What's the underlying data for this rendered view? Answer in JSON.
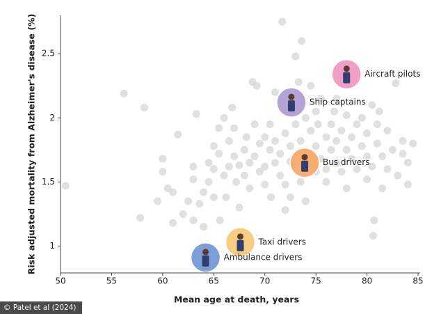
{
  "chart_data": {
    "type": "scatter",
    "x_label": "Mean age at death, years",
    "y_label": "Risk adjusted mortality from Alzheimer's disease (%)",
    "credit": "© Patel et al (2024)",
    "xlim": [
      50,
      85.2
    ],
    "ylim": [
      0.79,
      2.8
    ],
    "xticks": [
      50,
      55,
      60,
      65,
      70,
      75,
      80,
      85
    ],
    "yticks": [
      1,
      1.5,
      2,
      2.5
    ],
    "points": {
      "color": "#d6d6d6",
      "x": [
        50.5,
        56.2,
        58.2,
        57.8,
        59.5,
        60,
        60,
        60.5,
        61,
        61,
        61.5,
        62,
        62.5,
        63,
        63,
        63,
        63.3,
        63.6,
        64,
        64,
        64.5,
        64.5,
        65,
        65,
        65,
        65.5,
        65.5,
        65.6,
        66,
        66,
        66.2,
        66.5,
        66.5,
        66.8,
        67,
        67,
        67.2,
        67.5,
        67.5,
        68,
        68,
        68.2,
        68.5,
        68.5,
        68.8,
        69,
        69,
        69.2,
        69.5,
        69.5,
        70,
        70,
        70,
        70.5,
        70.5,
        70.6,
        71,
        71,
        71,
        71.5,
        71.5,
        71.7,
        72,
        72,
        72,
        72.5,
        72.5,
        72.5,
        73,
        73,
        73,
        73.3,
        73.5,
        73.5,
        73.6,
        74,
        74,
        74,
        74.5,
        74.5,
        75,
        75,
        75,
        75.2,
        75.5,
        75.5,
        76,
        76,
        76,
        76.5,
        76.5,
        76.8,
        77,
        77,
        77,
        77.5,
        77.5,
        78,
        78,
        78,
        78.5,
        78.5,
        79,
        79,
        79.5,
        79.5,
        80,
        80,
        80,
        80.5,
        80.5,
        80.7,
        81,
        81,
        81.2,
        81.5,
        81.5,
        82,
        82,
        82.5,
        82.8,
        83,
        83.5,
        83.5,
        84,
        84.5,
        84,
        80.6
      ],
      "y": [
        1.47,
        2.19,
        2.08,
        1.22,
        1.35,
        1.68,
        1.58,
        1.45,
        1.42,
        1.18,
        1.87,
        1.25,
        1.35,
        1.52,
        1.2,
        1.62,
        2.03,
        1.33,
        1.42,
        1.15,
        1.65,
        1.5,
        1.78,
        1.6,
        1.38,
        1.92,
        1.72,
        1.2,
        2.0,
        1.55,
        1.38,
        1.82,
        1.62,
        2.08,
        1.92,
        1.7,
        1.5,
        1.63,
        1.3,
        1.75,
        1.55,
        1.85,
        1.65,
        1.45,
        2.28,
        1.95,
        1.7,
        2.25,
        1.58,
        1.8,
        1.85,
        1.62,
        1.48,
        1.75,
        1.95,
        1.38,
        1.65,
        1.82,
        2.2,
        1.55,
        1.72,
        2.75,
        1.88,
        1.48,
        1.28,
        1.66,
        1.78,
        1.38,
        1.95,
        1.6,
        2.48,
        2.28,
        1.82,
        1.5,
        2.6,
        1.72,
        2.0,
        1.35,
        2.25,
        1.9,
        1.58,
        1.78,
        2.05,
        1.95,
        1.68,
        2.15,
        1.85,
        1.6,
        1.5,
        1.95,
        1.75,
        2.05,
        1.65,
        1.82,
        2.15,
        1.58,
        1.9,
        1.75,
        2.02,
        1.45,
        1.68,
        1.85,
        1.6,
        1.95,
        1.78,
        2.0,
        1.7,
        1.88,
        1.52,
        2.1,
        1.62,
        1.2,
        1.8,
        1.95,
        2.05,
        1.7,
        1.45,
        1.9,
        1.6,
        1.75,
        2.27,
        1.55,
        1.72,
        1.82,
        1.65,
        1.8,
        1.48,
        1.08
      ]
    },
    "highlights": {
      "labels": [
        "Aircraft pilots",
        "Ship captains",
        "Bus drivers",
        "Taxi drivers",
        "Ambulance drivers"
      ],
      "x": [
        78.0,
        72.6,
        73.9,
        67.6,
        64.2
      ],
      "y": [
        2.34,
        2.12,
        1.65,
        1.03,
        0.91
      ],
      "colors": [
        "#ef9fc6",
        "#b4a3d6",
        "#f5ad72",
        "#f7cd86",
        "#7c9fd6"
      ]
    }
  }
}
